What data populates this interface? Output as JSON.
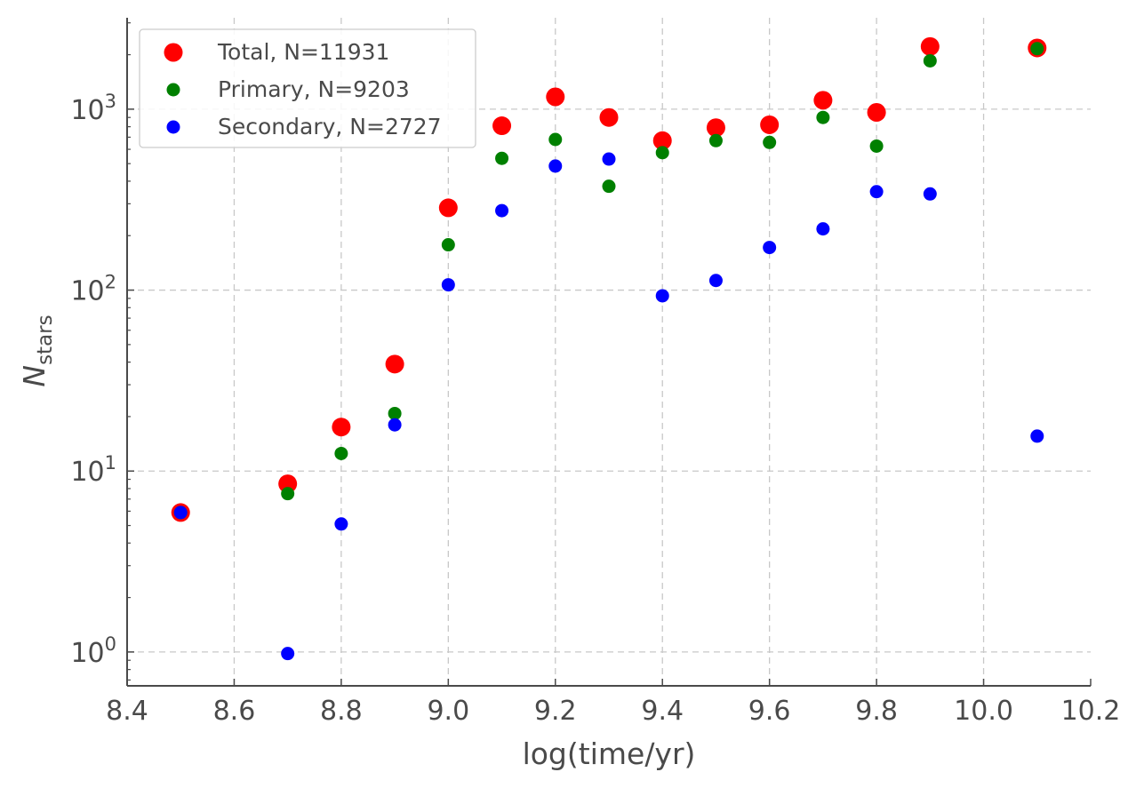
{
  "chart_data": {
    "type": "scatter",
    "xlabel": "log(time/yr)",
    "ylabel_main": "N",
    "ylabel_sub": "stars",
    "yscale": "log",
    "xlim": [
      8.4,
      10.2
    ],
    "ylim": [
      0.65,
      3200
    ],
    "xticks": [
      "8.4",
      "8.6",
      "8.8",
      "9.0",
      "9.2",
      "9.4",
      "9.6",
      "9.8",
      "10.0",
      "10.2"
    ],
    "yticks": [
      {
        "value": 1,
        "base": "10",
        "exp": "0"
      },
      {
        "value": 10,
        "base": "10",
        "exp": "1"
      },
      {
        "value": 100,
        "base": "10",
        "exp": "2"
      },
      {
        "value": 1000,
        "base": "10",
        "exp": "3"
      }
    ],
    "grid": true,
    "legend_position": "top-left",
    "series": [
      {
        "name": "Total, N=11931",
        "color": "#ff0000",
        "marker": "large-circle",
        "points": [
          [
            8.5,
            5.9
          ],
          [
            8.7,
            8.5
          ],
          [
            8.8,
            17.5
          ],
          [
            8.9,
            39
          ],
          [
            9.0,
            285
          ],
          [
            9.1,
            810
          ],
          [
            9.2,
            1170
          ],
          [
            9.3,
            900
          ],
          [
            9.4,
            670
          ],
          [
            9.5,
            790
          ],
          [
            9.6,
            820
          ],
          [
            9.7,
            1120
          ],
          [
            9.8,
            960
          ],
          [
            9.9,
            2220
          ],
          [
            10.1,
            2180
          ]
        ]
      },
      {
        "name": "Primary, N=9203",
        "color": "#008000",
        "marker": "circle",
        "points": [
          [
            8.5,
            5.9
          ],
          [
            8.7,
            7.5
          ],
          [
            8.8,
            12.5
          ],
          [
            8.9,
            20.8
          ],
          [
            9.0,
            178
          ],
          [
            9.1,
            535
          ],
          [
            9.2,
            680
          ],
          [
            9.3,
            375
          ],
          [
            9.4,
            575
          ],
          [
            9.5,
            670
          ],
          [
            9.6,
            655
          ],
          [
            9.7,
            900
          ],
          [
            9.8,
            625
          ],
          [
            9.9,
            1850
          ],
          [
            10.1,
            2160
          ]
        ]
      },
      {
        "name": "Secondary, N=2727",
        "color": "#0000ff",
        "marker": "circle",
        "points": [
          [
            8.5,
            5.9
          ],
          [
            8.7,
            0.98
          ],
          [
            8.8,
            5.1
          ],
          [
            8.9,
            18
          ],
          [
            9.0,
            107
          ],
          [
            9.1,
            275
          ],
          [
            9.2,
            485
          ],
          [
            9.3,
            530
          ],
          [
            9.4,
            93
          ],
          [
            9.5,
            113
          ],
          [
            9.6,
            172
          ],
          [
            9.7,
            218
          ],
          [
            9.8,
            350
          ],
          [
            9.9,
            340
          ],
          [
            10.1,
            15.6
          ]
        ]
      }
    ]
  }
}
